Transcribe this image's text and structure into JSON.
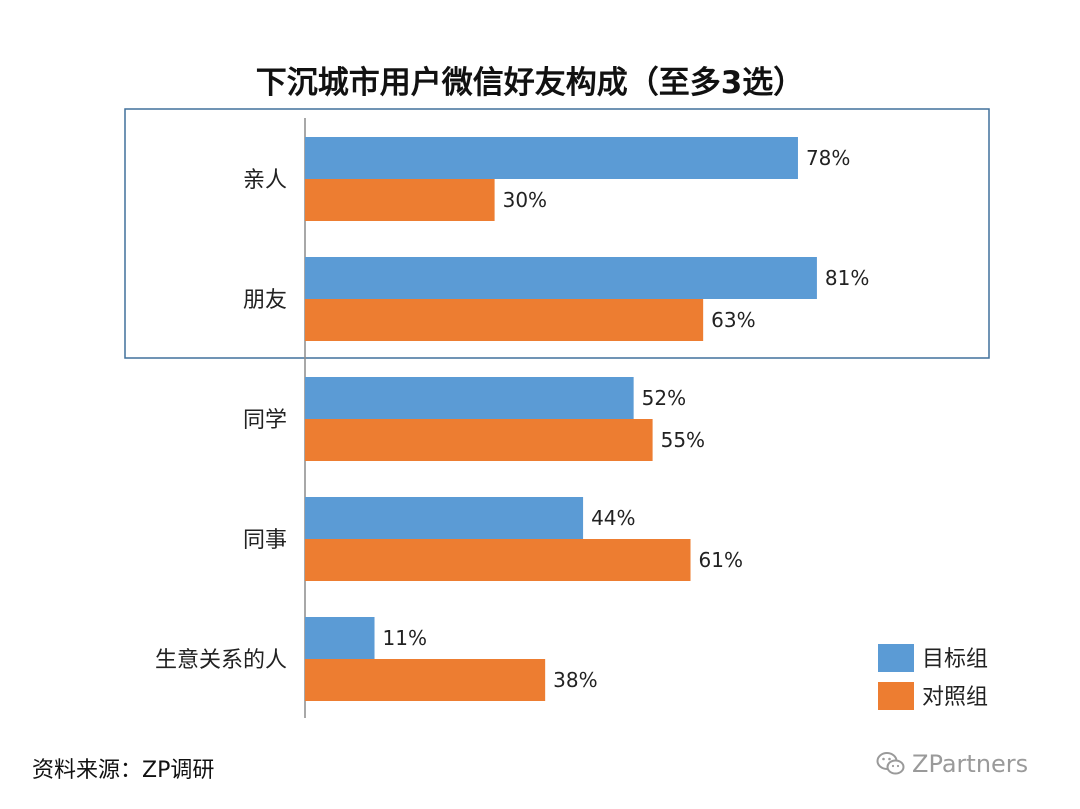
{
  "chart_data": {
    "type": "bar",
    "orientation": "horizontal",
    "title": "下沉城市用户微信好友构成（至多3选）",
    "categories": [
      "亲人",
      "朋友",
      "同学",
      "同事",
      "生意关系的人"
    ],
    "series": [
      {
        "name": "目标组",
        "color": "#5B9BD5",
        "values": [
          78,
          81,
          52,
          44,
          11
        ],
        "labels": [
          "78%",
          "81%",
          "52%",
          "44%",
          "11%"
        ]
      },
      {
        "name": "对照组",
        "color": "#ED7D31",
        "values": [
          30,
          63,
          55,
          61,
          38
        ],
        "labels": [
          "30%",
          "63%",
          "55%",
          "61%",
          "38%"
        ]
      }
    ],
    "xlim": [
      0,
      100
    ],
    "grid": false,
    "legend_position": "bottom-right",
    "highlight_box_categories": [
      "亲人",
      "朋友"
    ],
    "highlight_box_color": "#41719C"
  },
  "footer": {
    "source": "资料来源：ZP调研",
    "watermark": "ZPartners",
    "watermark_icon": "wechat-icon"
  }
}
